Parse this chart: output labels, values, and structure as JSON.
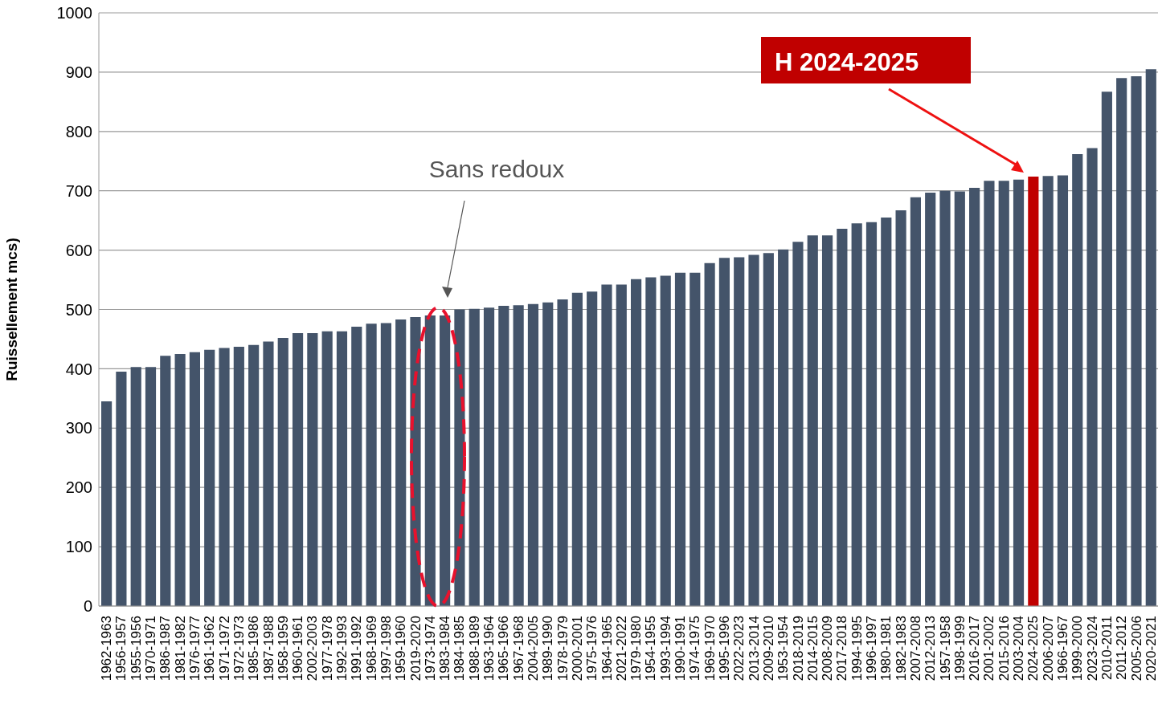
{
  "chart_data": {
    "type": "bar",
    "ylabel": "Ruissellement mcs)",
    "categories": [
      "1962-1963",
      "1956-1957",
      "1955-1956",
      "1970-1971",
      "1986-1987",
      "1981-1982",
      "1976-1977",
      "1961-1962",
      "1971-1972",
      "1972-1973",
      "1985-1986",
      "1987-1988",
      "1958-1959",
      "1960-1961",
      "2002-2003",
      "1977-1978",
      "1992-1993",
      "1991-1992",
      "1968-1969",
      "1997-1998",
      "1959-1960",
      "2019-2020",
      "1973-1974",
      "1983-1984",
      "1984-1985",
      "1988-1989",
      "1963-1964",
      "1965-1966",
      "1967-1968",
      "2004-2005",
      "1989-1990",
      "1978-1979",
      "2000-2001",
      "1975-1976",
      "1964-1965",
      "2021-2022",
      "1979-1980",
      "1954-1955",
      "1993-1994",
      "1990-1991",
      "1974-1975",
      "1969-1970",
      "1995-1996",
      "2022-2023",
      "2013-2014",
      "2009-2010",
      "1953-1954",
      "2018-2019",
      "2014-2015",
      "2008-2009",
      "2017-2018",
      "1994-1995",
      "1996-1997",
      "1980-1981",
      "1982-1983",
      "2007-2008",
      "2012-2013",
      "1957-1958",
      "1998-1999",
      "2016-2017",
      "2001-2002",
      "2015-2016",
      "2003-2004",
      "2024-2025",
      "2006-2007",
      "1966-1967",
      "1999-2000",
      "2023-2024",
      "2010-2011",
      "2011-2012",
      "2005-2006",
      "2020-2021"
    ],
    "values": [
      345,
      395,
      403,
      403,
      422,
      425,
      428,
      432,
      435,
      437,
      440,
      446,
      452,
      460,
      460,
      463,
      463,
      471,
      476,
      477,
      483,
      487,
      490,
      490,
      500,
      501,
      503,
      506,
      507,
      509,
      512,
      517,
      528,
      530,
      542,
      542,
      551,
      554,
      557,
      562,
      562,
      578,
      587,
      588,
      592,
      595,
      601,
      614,
      625,
      625,
      636,
      645,
      647,
      655,
      667,
      689,
      697,
      700,
      699,
      705,
      717,
      717,
      719,
      724,
      725,
      726,
      762,
      772,
      867,
      890,
      893,
      905
    ],
    "colors": [
      "#44546a",
      "#44546a",
      "#44546a",
      "#44546a",
      "#44546a",
      "#44546a",
      "#44546a",
      "#44546a",
      "#44546a",
      "#44546a",
      "#44546a",
      "#44546a",
      "#44546a",
      "#44546a",
      "#44546a",
      "#44546a",
      "#44546a",
      "#44546a",
      "#44546a",
      "#44546a",
      "#44546a",
      "#44546a",
      "#44546a",
      "#44546a",
      "#44546a",
      "#44546a",
      "#44546a",
      "#44546a",
      "#44546a",
      "#44546a",
      "#44546a",
      "#44546a",
      "#44546a",
      "#44546a",
      "#44546a",
      "#44546a",
      "#44546a",
      "#44546a",
      "#44546a",
      "#44546a",
      "#44546a",
      "#44546a",
      "#44546a",
      "#44546a",
      "#44546a",
      "#44546a",
      "#44546a",
      "#44546a",
      "#44546a",
      "#44546a",
      "#44546a",
      "#44546a",
      "#44546a",
      "#44546a",
      "#44546a",
      "#44546a",
      "#44546a",
      "#44546a",
      "#44546a",
      "#44546a",
      "#44546a",
      "#44546a",
      "#44546a",
      "#c00000",
      "#44546a",
      "#44546a",
      "#44546a",
      "#44546a",
      "#44546a",
      "#44546a",
      "#44546a",
      "#44546a"
    ],
    "ylim": [
      0,
      1000
    ],
    "yticks": [
      0,
      100,
      200,
      300,
      400,
      500,
      600,
      700,
      800,
      900,
      1000
    ],
    "grid": "y",
    "annotations": [
      "Sans redoux",
      "H 2024-2025"
    ]
  }
}
